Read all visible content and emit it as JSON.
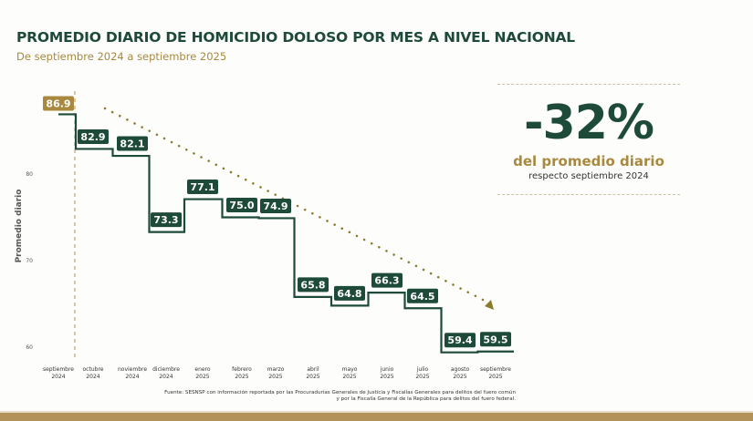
{
  "chart_data": {
    "type": "line",
    "step": true,
    "title": "PROMEDIO DIARIO DE HOMICIDIO DOLOSO POR MES A NIVEL NACIONAL",
    "subtitle": "De septiembre 2024 a septiembre 2025",
    "xlabel": "",
    "ylabel": "Promedio diario",
    "ylim": [
      58,
      90
    ],
    "yticks": [
      60,
      70,
      80
    ],
    "categories": [
      [
        "septiembre",
        "2024"
      ],
      [
        "octubre",
        "2024"
      ],
      [
        "noviembre",
        "2024"
      ],
      [
        "diciembre",
        "2024"
      ],
      [
        "enero",
        "2025"
      ],
      [
        "febrero",
        "2025"
      ],
      [
        "marzo",
        "2025"
      ],
      [
        "abril",
        "2025"
      ],
      [
        "mayo",
        "2025"
      ],
      [
        "junio",
        "2025"
      ],
      [
        "julio",
        "2025"
      ],
      [
        "agosto",
        "2025"
      ],
      [
        "septiembre",
        "2025"
      ]
    ],
    "values": [
      86.9,
      82.9,
      82.1,
      73.3,
      77.1,
      75.0,
      74.9,
      65.8,
      64.8,
      66.3,
      64.5,
      59.4,
      59.5
    ],
    "labels": [
      "86.9",
      "82.9",
      "82.1",
      "73.3",
      "77.1",
      "75.0",
      "74.9",
      "65.8",
      "64.8",
      "66.3",
      "64.5",
      "59.4",
      "59.5"
    ],
    "trend": "decreasing dotted arrow",
    "colors": {
      "line": "#1e4a3a",
      "baseline_label": "#a8893f",
      "trend": "#8a7a2a"
    }
  },
  "kpi": {
    "value": "-32%",
    "label": "del promedio diario",
    "sub": "respecto septiembre 2024"
  },
  "source": {
    "line1": "Fuente: SESNSP con información reportada por las Procuradurías Generales de Justicia y Fiscalías Generales para delitos del fuero común",
    "line2": "y por la Fiscalía General de la República para delitos del fuero federal."
  }
}
